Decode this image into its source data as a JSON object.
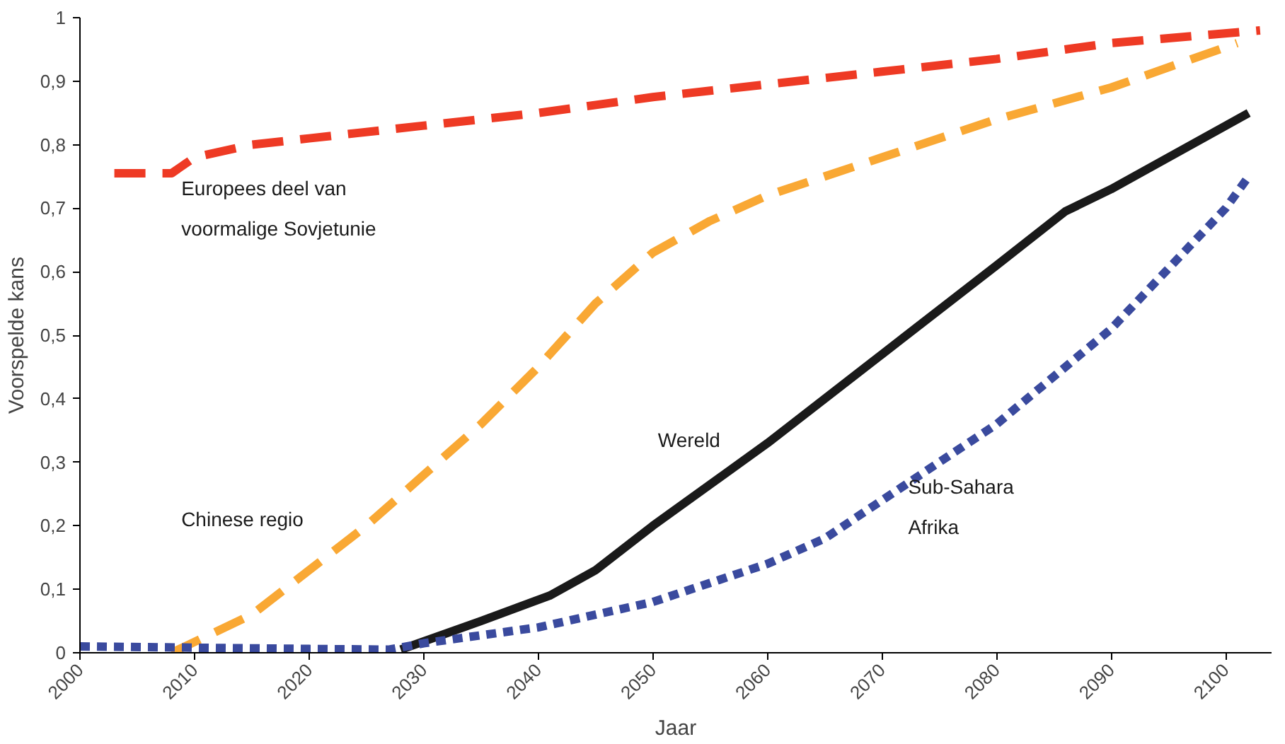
{
  "chart_data": {
    "type": "line",
    "xlabel": "Jaar",
    "ylabel": "Voorspelde kans",
    "xlim": [
      2000,
      2104
    ],
    "ylim": [
      0,
      1
    ],
    "xticks": [
      2000,
      2010,
      2020,
      2030,
      2040,
      2050,
      2060,
      2070,
      2080,
      2090,
      2100
    ],
    "yticks": [
      0,
      {
        "value": 0.1,
        "label": "0,1"
      },
      {
        "value": 0.2,
        "label": "0,2"
      },
      {
        "value": 0.3,
        "label": "0,3"
      },
      {
        "value": 0.4,
        "label": "0,4"
      },
      {
        "value": 0.5,
        "label": "0,5"
      },
      {
        "value": 0.6,
        "label": "0,6"
      },
      {
        "value": 0.7,
        "label": "0,7"
      },
      {
        "value": 0.8,
        "label": "0,8"
      },
      {
        "value": 0.9,
        "label": "0,9"
      },
      1
    ],
    "grid": false,
    "legend": false,
    "series": [
      {
        "name": "Europees deel van\nvoormalige Sovjetunie",
        "color": "#ee3a24",
        "line_style": "dashed",
        "x": [
          2003,
          2008,
          2010,
          2015,
          2020,
          2030,
          2040,
          2050,
          2060,
          2070,
          2080,
          2090,
          2103
        ],
        "values": [
          0.755,
          0.755,
          0.78,
          0.8,
          0.81,
          0.83,
          0.85,
          0.875,
          0.895,
          0.915,
          0.935,
          0.96,
          0.98
        ]
      },
      {
        "name": "Chinese regio",
        "color": "#f9a834",
        "line_style": "dashed",
        "x": [
          2008,
          2015,
          2020,
          2025,
          2030,
          2035,
          2040,
          2045,
          2050,
          2055,
          2060,
          2070,
          2080,
          2090,
          2101
        ],
        "values": [
          0.0,
          0.06,
          0.13,
          0.2,
          0.28,
          0.36,
          0.45,
          0.55,
          0.63,
          0.68,
          0.72,
          0.78,
          0.84,
          0.89,
          0.96
        ]
      },
      {
        "name": "Wereld",
        "color": "#1a1a1a",
        "line_style": "solid",
        "x": [
          2028,
          2035,
          2041,
          2045,
          2050,
          2060,
          2070,
          2080,
          2086,
          2090,
          2100,
          2102
        ],
        "values": [
          0.005,
          0.05,
          0.09,
          0.13,
          0.2,
          0.33,
          0.47,
          0.61,
          0.695,
          0.73,
          0.83,
          0.85
        ]
      },
      {
        "name": "Sub-Sahara\nAfrika",
        "color": "#3a4a9e",
        "line_style": "dotted",
        "x": [
          2000,
          2010,
          2020,
          2027,
          2030,
          2040,
          2050,
          2060,
          2065,
          2070,
          2080,
          2090,
          2100,
          2102
        ],
        "values": [
          0.01,
          0.008,
          0.006,
          0.005,
          0.015,
          0.04,
          0.08,
          0.14,
          0.18,
          0.24,
          0.36,
          0.51,
          0.7,
          0.75
        ]
      }
    ]
  }
}
